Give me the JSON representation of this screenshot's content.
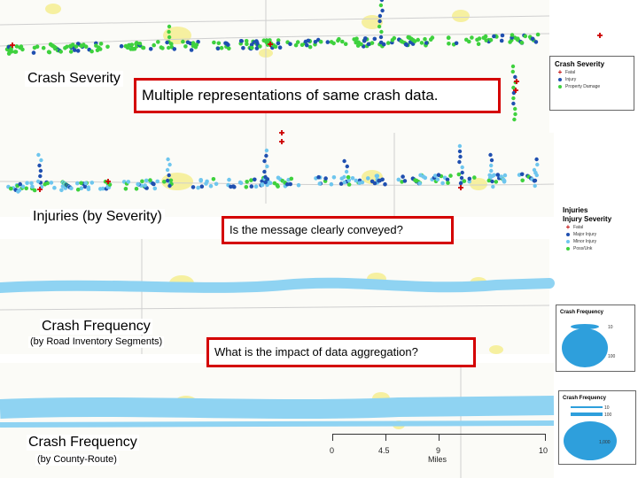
{
  "panels": {
    "crash_severity": {
      "label": "Crash Severity"
    },
    "injuries": {
      "label": "Injuries (by Severity)"
    },
    "frequency_segments": {
      "label": "Crash Frequency",
      "sublabel": "(by Road Inventory Segments)"
    },
    "frequency_county": {
      "label": "Crash Frequency",
      "sublabel": "(by County-Route)"
    }
  },
  "callouts": {
    "main": "Multiple representations of same crash data.",
    "q1": "Is the message clearly conveyed?",
    "q2": "What is the impact of data aggregation?"
  },
  "legends": {
    "severity": {
      "title": "Crash Severity",
      "items": [
        {
          "label": "Fatal",
          "symbol": "plus",
          "color": "#cc0000"
        },
        {
          "label": "Injury",
          "symbol": "dot",
          "color": "#1f4fb0"
        },
        {
          "label": "Property Damage",
          "symbol": "dot",
          "color": "#3ed13e"
        }
      ]
    },
    "injury": {
      "title1": "Injuries",
      "title2": "Injury Severity",
      "items": [
        {
          "label": "Fatal",
          "symbol": "plus",
          "color": "#cc0000"
        },
        {
          "label": "Major Injury",
          "symbol": "dot",
          "color": "#1f4fb0"
        },
        {
          "label": "Minor Injury",
          "symbol": "dot",
          "color": "#6ec6ee"
        },
        {
          "label": "Poss/Unk",
          "symbol": "dot",
          "color": "#3ed13e"
        }
      ]
    },
    "freq1": {
      "title": "Crash Frequency",
      "values": [
        "10",
        "100"
      ]
    },
    "freq2": {
      "title": "Crash Frequency",
      "values": [
        "10",
        "100",
        "1,000"
      ]
    }
  },
  "scale_bar": {
    "ticks": [
      "0",
      "4.5",
      "9",
      "10"
    ],
    "unit": "Miles"
  },
  "colors": {
    "fatal": "#cc0000",
    "injury": "#1f4fb0",
    "minor": "#6ec6ee",
    "pdo": "#3ed13e",
    "band": "#8fd3f2",
    "urban": "#f6f0a0"
  }
}
